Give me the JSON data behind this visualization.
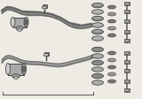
{
  "bg_color": "#eeebe4",
  "line_color": "#444444",
  "bar_color": "#666666",
  "part_color": "#888888",
  "part_light": "#bbbbbb",
  "part_dark": "#333333",
  "figsize": [
    1.6,
    1.12
  ],
  "dpi": 100,
  "top_bar": {
    "x": [
      2,
      10,
      18,
      30,
      50,
      62,
      70,
      78,
      90,
      100,
      105
    ],
    "y": [
      14,
      10,
      12,
      16,
      18,
      20,
      24,
      28,
      30,
      28,
      26
    ]
  },
  "bot_bar": {
    "x": [
      2,
      10,
      18,
      30,
      50,
      70,
      85,
      100,
      105
    ],
    "y": [
      72,
      67,
      68,
      72,
      74,
      76,
      72,
      68,
      66
    ]
  }
}
